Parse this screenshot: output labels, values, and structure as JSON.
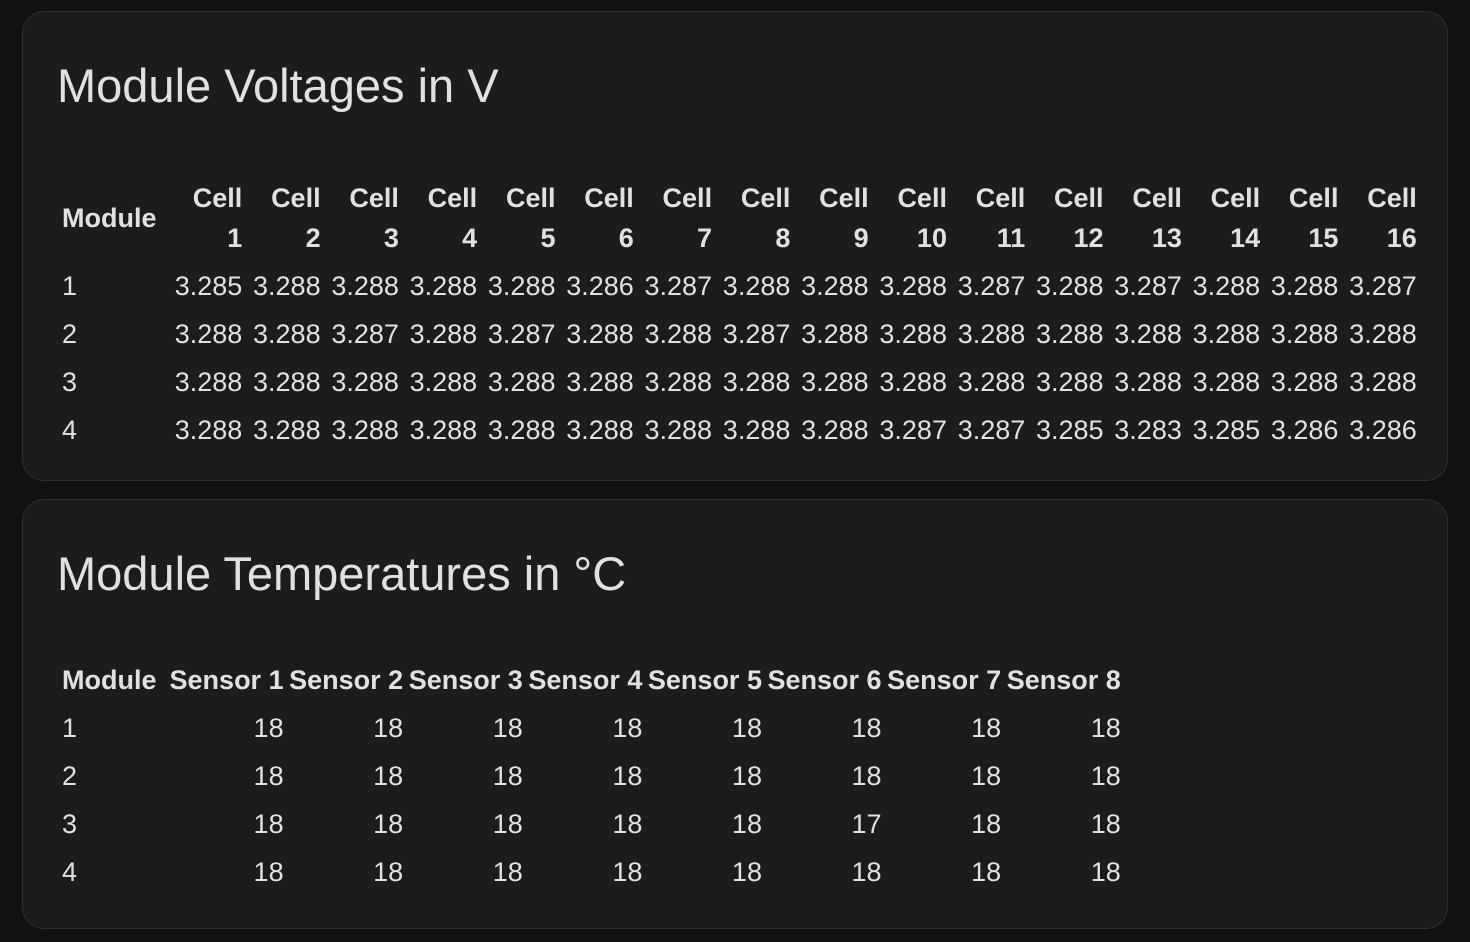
{
  "voltages": {
    "title": "Module Voltages in V",
    "module_header": "Module",
    "cell_label": "Cell",
    "columns": [
      "1",
      "2",
      "3",
      "4",
      "5",
      "6",
      "7",
      "8",
      "9",
      "10",
      "11",
      "12",
      "13",
      "14",
      "15",
      "16"
    ],
    "rows": [
      {
        "module": "1",
        "values": [
          "3.285",
          "3.288",
          "3.288",
          "3.288",
          "3.288",
          "3.286",
          "3.287",
          "3.288",
          "3.288",
          "3.288",
          "3.287",
          "3.288",
          "3.287",
          "3.288",
          "3.288",
          "3.287"
        ]
      },
      {
        "module": "2",
        "values": [
          "3.288",
          "3.288",
          "3.287",
          "3.288",
          "3.287",
          "3.288",
          "3.288",
          "3.287",
          "3.288",
          "3.288",
          "3.288",
          "3.288",
          "3.288",
          "3.288",
          "3.288",
          "3.288"
        ]
      },
      {
        "module": "3",
        "values": [
          "3.288",
          "3.288",
          "3.288",
          "3.288",
          "3.288",
          "3.288",
          "3.288",
          "3.288",
          "3.288",
          "3.288",
          "3.288",
          "3.288",
          "3.288",
          "3.288",
          "3.288",
          "3.288"
        ]
      },
      {
        "module": "4",
        "values": [
          "3.288",
          "3.288",
          "3.288",
          "3.288",
          "3.288",
          "3.288",
          "3.288",
          "3.288",
          "3.288",
          "3.287",
          "3.287",
          "3.285",
          "3.283",
          "3.285",
          "3.286",
          "3.286"
        ]
      }
    ]
  },
  "temperatures": {
    "title": "Module Temperatures in °C",
    "module_header": "Module",
    "columns": [
      "Sensor 1",
      "Sensor 2",
      "Sensor 3",
      "Sensor 4",
      "Sensor 5",
      "Sensor 6",
      "Sensor 7",
      "Sensor 8"
    ],
    "rows": [
      {
        "module": "1",
        "values": [
          "18",
          "18",
          "18",
          "18",
          "18",
          "18",
          "18",
          "18"
        ]
      },
      {
        "module": "2",
        "values": [
          "18",
          "18",
          "18",
          "18",
          "18",
          "18",
          "18",
          "18"
        ]
      },
      {
        "module": "3",
        "values": [
          "18",
          "18",
          "18",
          "18",
          "18",
          "17",
          "18",
          "18"
        ]
      },
      {
        "module": "4",
        "values": [
          "18",
          "18",
          "18",
          "18",
          "18",
          "18",
          "18",
          "18"
        ]
      }
    ]
  }
}
